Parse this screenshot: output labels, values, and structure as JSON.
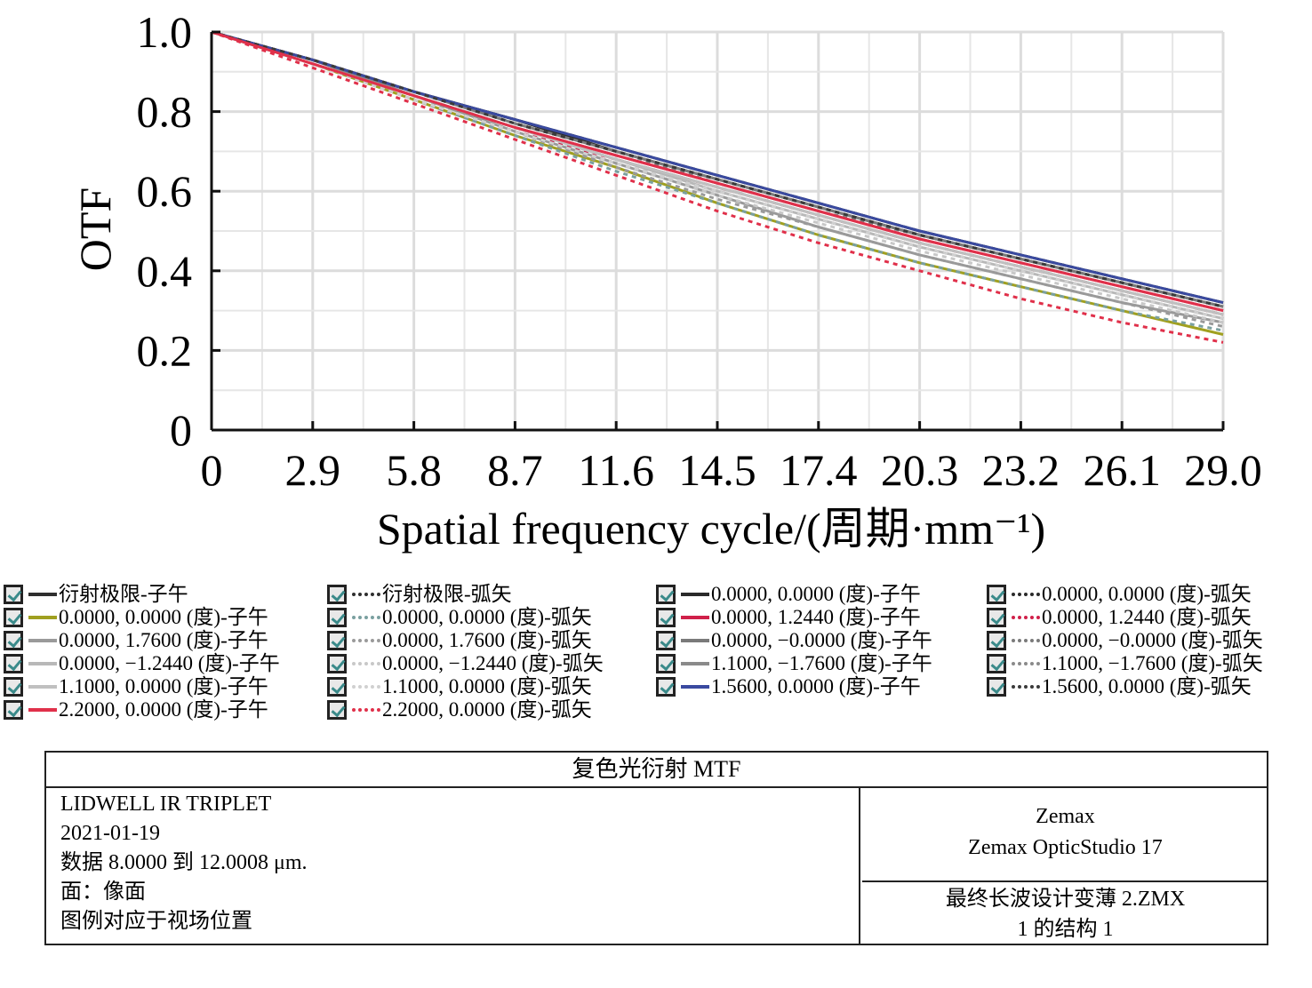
{
  "chart_data": {
    "type": "line",
    "xlabel": "Spatial frequency cycle/(周期·mm⁻¹)",
    "ylabel": "OTF",
    "xlim": [
      0,
      29.0
    ],
    "ylim": [
      0,
      1.0
    ],
    "x_ticks": [
      "0",
      "2.9",
      "5.8",
      "8.7",
      "11.6",
      "14.5",
      "17.4",
      "20.3",
      "23.2",
      "26.1",
      "29.0"
    ],
    "y_ticks": [
      "0",
      "0.2",
      "0.4",
      "0.6",
      "0.8",
      "1.0"
    ],
    "grid": true,
    "x": [
      0,
      2.9,
      5.8,
      8.7,
      11.6,
      14.5,
      17.4,
      20.3,
      23.2,
      26.1,
      29.0
    ],
    "series": [
      {
        "name": "衍射极限-子午",
        "color": "#2f2f2f",
        "dash": false,
        "values": [
          1.0,
          0.93,
          0.85,
          0.78,
          0.71,
          0.64,
          0.57,
          0.5,
          0.44,
          0.38,
          0.32
        ]
      },
      {
        "name": "衍射极限-弧矢",
        "color": "#2f2f2f",
        "dash": true,
        "values": [
          1.0,
          0.93,
          0.85,
          0.78,
          0.71,
          0.64,
          0.57,
          0.5,
          0.44,
          0.38,
          0.32
        ]
      },
      {
        "name": "0.0000, 0.0000 (度)-子午",
        "color": "#2a2a2a",
        "dash": false,
        "values": [
          1.0,
          0.93,
          0.85,
          0.78,
          0.7,
          0.63,
          0.56,
          0.49,
          0.43,
          0.37,
          0.31
        ]
      },
      {
        "name": "0.0000, 0.0000 (度)-弧矢",
        "color": "#2a2a2a",
        "dash": true,
        "values": [
          1.0,
          0.93,
          0.85,
          0.77,
          0.7,
          0.63,
          0.56,
          0.49,
          0.43,
          0.37,
          0.31
        ]
      },
      {
        "name": "0.0000, 0.0000 (度)-子午",
        "color": "#a0a020",
        "dash": false,
        "values": [
          1.0,
          0.92,
          0.83,
          0.74,
          0.66,
          0.57,
          0.49,
          0.42,
          0.36,
          0.3,
          0.24
        ]
      },
      {
        "name": "0.0000, 0.0000 (度)-弧矢",
        "color": "#7aa0a0",
        "dash": true,
        "values": [
          1.0,
          0.92,
          0.83,
          0.74,
          0.65,
          0.57,
          0.49,
          0.42,
          0.36,
          0.3,
          0.25
        ]
      },
      {
        "name": "0.0000, 1.2440 (度)-子午",
        "color": "#d0204a",
        "dash": false,
        "values": [
          1.0,
          0.93,
          0.84,
          0.76,
          0.69,
          0.62,
          0.55,
          0.48,
          0.42,
          0.36,
          0.3
        ]
      },
      {
        "name": "0.0000, 1.2440 (度)-弧矢",
        "color": "#d0204a",
        "dash": true,
        "values": [
          1.0,
          0.92,
          0.83,
          0.75,
          0.68,
          0.61,
          0.54,
          0.47,
          0.41,
          0.35,
          0.29
        ]
      },
      {
        "name": "0.0000, 1.7600 (度)-子午",
        "color": "#9a9a9a",
        "dash": false,
        "values": [
          1.0,
          0.92,
          0.84,
          0.75,
          0.67,
          0.59,
          0.51,
          0.44,
          0.38,
          0.32,
          0.27
        ]
      },
      {
        "name": "0.0000, 1.7600 (度)-弧矢",
        "color": "#9a9a9a",
        "dash": true,
        "values": [
          1.0,
          0.92,
          0.83,
          0.75,
          0.66,
          0.58,
          0.51,
          0.44,
          0.38,
          0.32,
          0.26
        ]
      },
      {
        "name": "0.0000, −0.0000 (度)-子午",
        "color": "#7a7a7a",
        "dash": false,
        "values": [
          1.0,
          0.93,
          0.85,
          0.77,
          0.7,
          0.63,
          0.56,
          0.49,
          0.43,
          0.37,
          0.31
        ]
      },
      {
        "name": "0.0000, −0.0000 (度)-弧矢",
        "color": "#7a7a7a",
        "dash": true,
        "values": [
          1.0,
          0.93,
          0.85,
          0.77,
          0.7,
          0.62,
          0.55,
          0.49,
          0.43,
          0.37,
          0.31
        ]
      },
      {
        "name": "0.0000, −1.2440 (度)-子午",
        "color": "#b8b8b8",
        "dash": false,
        "values": [
          1.0,
          0.92,
          0.84,
          0.76,
          0.68,
          0.6,
          0.53,
          0.46,
          0.4,
          0.34,
          0.28
        ]
      },
      {
        "name": "0.0000, −1.2440 (度)-弧矢",
        "color": "#c8c8c8",
        "dash": true,
        "values": [
          1.0,
          0.92,
          0.83,
          0.75,
          0.67,
          0.59,
          0.52,
          0.45,
          0.39,
          0.33,
          0.27
        ]
      },
      {
        "name": "1.1000, −1.7600 (度)-子午",
        "color": "#8a8a8a",
        "dash": false,
        "values": [
          1.0,
          0.93,
          0.84,
          0.76,
          0.68,
          0.61,
          0.54,
          0.47,
          0.41,
          0.35,
          0.29
        ]
      },
      {
        "name": "1.1000, −1.7600 (度)-弧矢",
        "color": "#8a8a8a",
        "dash": true,
        "values": [
          1.0,
          0.92,
          0.84,
          0.75,
          0.67,
          0.6,
          0.53,
          0.46,
          0.4,
          0.34,
          0.28
        ]
      },
      {
        "name": "1.1000, 0.0000 (度)-子午",
        "color": "#c0c0c0",
        "dash": false,
        "values": [
          1.0,
          0.92,
          0.84,
          0.76,
          0.68,
          0.61,
          0.54,
          0.47,
          0.41,
          0.35,
          0.29
        ]
      },
      {
        "name": "1.1000, 0.0000 (度)-弧矢",
        "color": "#d0d0d0",
        "dash": true,
        "values": [
          1.0,
          0.92,
          0.83,
          0.75,
          0.67,
          0.6,
          0.53,
          0.46,
          0.4,
          0.34,
          0.28
        ]
      },
      {
        "name": "1.5600, 0.0000 (度)-子午",
        "color": "#3a4aa0",
        "dash": false,
        "values": [
          1.0,
          0.93,
          0.85,
          0.78,
          0.71,
          0.64,
          0.57,
          0.5,
          0.44,
          0.38,
          0.32
        ]
      },
      {
        "name": "1.5600, 0.0000 (度)-弧矢",
        "color": "#3a3a3a",
        "dash": true,
        "values": [
          1.0,
          0.93,
          0.85,
          0.77,
          0.7,
          0.63,
          0.56,
          0.49,
          0.43,
          0.37,
          0.31
        ]
      },
      {
        "name": "2.2000, 0.0000 (度)-子午",
        "color": "#e0304a",
        "dash": false,
        "values": [
          1.0,
          0.92,
          0.84,
          0.76,
          0.69,
          0.62,
          0.55,
          0.48,
          0.42,
          0.36,
          0.3
        ]
      },
      {
        "name": "2.2000, 0.0000 (度)-弧矢",
        "color": "#e0304a",
        "dash": true,
        "values": [
          1.0,
          0.91,
          0.82,
          0.73,
          0.64,
          0.55,
          0.47,
          0.4,
          0.33,
          0.27,
          0.22
        ]
      }
    ]
  },
  "legend": {
    "columns": [
      [
        {
          "label": "衍射极限-子午",
          "color": "#2f2f2f",
          "dash": false
        },
        {
          "label": "0.0000, 0.0000 (度)-子午",
          "color": "#a0a020",
          "dash": false
        },
        {
          "label": "0.0000, 1.7600 (度)-子午",
          "color": "#9a9a9a",
          "dash": false
        },
        {
          "label": "0.0000, −1.2440 (度)-子午",
          "color": "#b8b8b8",
          "dash": false
        },
        {
          "label": "1.1000, 0.0000 (度)-子午",
          "color": "#c0c0c0",
          "dash": false
        },
        {
          "label": "2.2000, 0.0000 (度)-子午",
          "color": "#e0304a",
          "dash": false
        }
      ],
      [
        {
          "label": "衍射极限-弧矢",
          "color": "#2f2f2f",
          "dash": true
        },
        {
          "label": "0.0000, 0.0000 (度)-弧矢",
          "color": "#7aa0a0",
          "dash": true
        },
        {
          "label": "0.0000, 1.7600 (度)-弧矢",
          "color": "#9a9a9a",
          "dash": true
        },
        {
          "label": "0.0000, −1.2440 (度)-弧矢",
          "color": "#c8c8c8",
          "dash": true
        },
        {
          "label": "1.1000, 0.0000 (度)-弧矢",
          "color": "#d0d0d0",
          "dash": true
        },
        {
          "label": "2.2000, 0.0000 (度)-弧矢",
          "color": "#e0304a",
          "dash": true
        }
      ],
      [
        {
          "label": "0.0000, 0.0000 (度)-子午",
          "color": "#2a2a2a",
          "dash": false
        },
        {
          "label": "0.0000, 1.2440 (度)-子午",
          "color": "#d0204a",
          "dash": false
        },
        {
          "label": "0.0000, −0.0000 (度)-子午",
          "color": "#7a7a7a",
          "dash": false
        },
        {
          "label": "1.1000, −1.7600 (度)-子午",
          "color": "#8a8a8a",
          "dash": false
        },
        {
          "label": "1.5600, 0.0000 (度)-子午",
          "color": "#3a4aa0",
          "dash": false
        }
      ],
      [
        {
          "label": "0.0000, 0.0000 (度)-弧矢",
          "color": "#2a2a2a",
          "dash": true
        },
        {
          "label": "0.0000, 1.2440 (度)-弧矢",
          "color": "#d0204a",
          "dash": true
        },
        {
          "label": "0.0000, −0.0000 (度)-弧矢",
          "color": "#7a7a7a",
          "dash": true
        },
        {
          "label": "1.1000, −1.7600 (度)-弧矢",
          "color": "#8a8a8a",
          "dash": true
        },
        {
          "label": "1.5600, 0.0000 (度)-弧矢",
          "color": "#3a3a3a",
          "dash": true
        }
      ]
    ]
  },
  "info": {
    "title": "复色光衍射 MTF",
    "left_lines": [
      "LIDWELL IR TRIPLET",
      "2021-01-19",
      "数据 8.0000 到 12.0008 μm.",
      "面：像面",
      "图例对应于视场位置"
    ],
    "right_top": [
      "Zemax",
      "Zemax OpticStudio 17"
    ],
    "right_bottom": [
      "最终长波设计变薄 2.ZMX",
      "1 的结构 1"
    ]
  }
}
